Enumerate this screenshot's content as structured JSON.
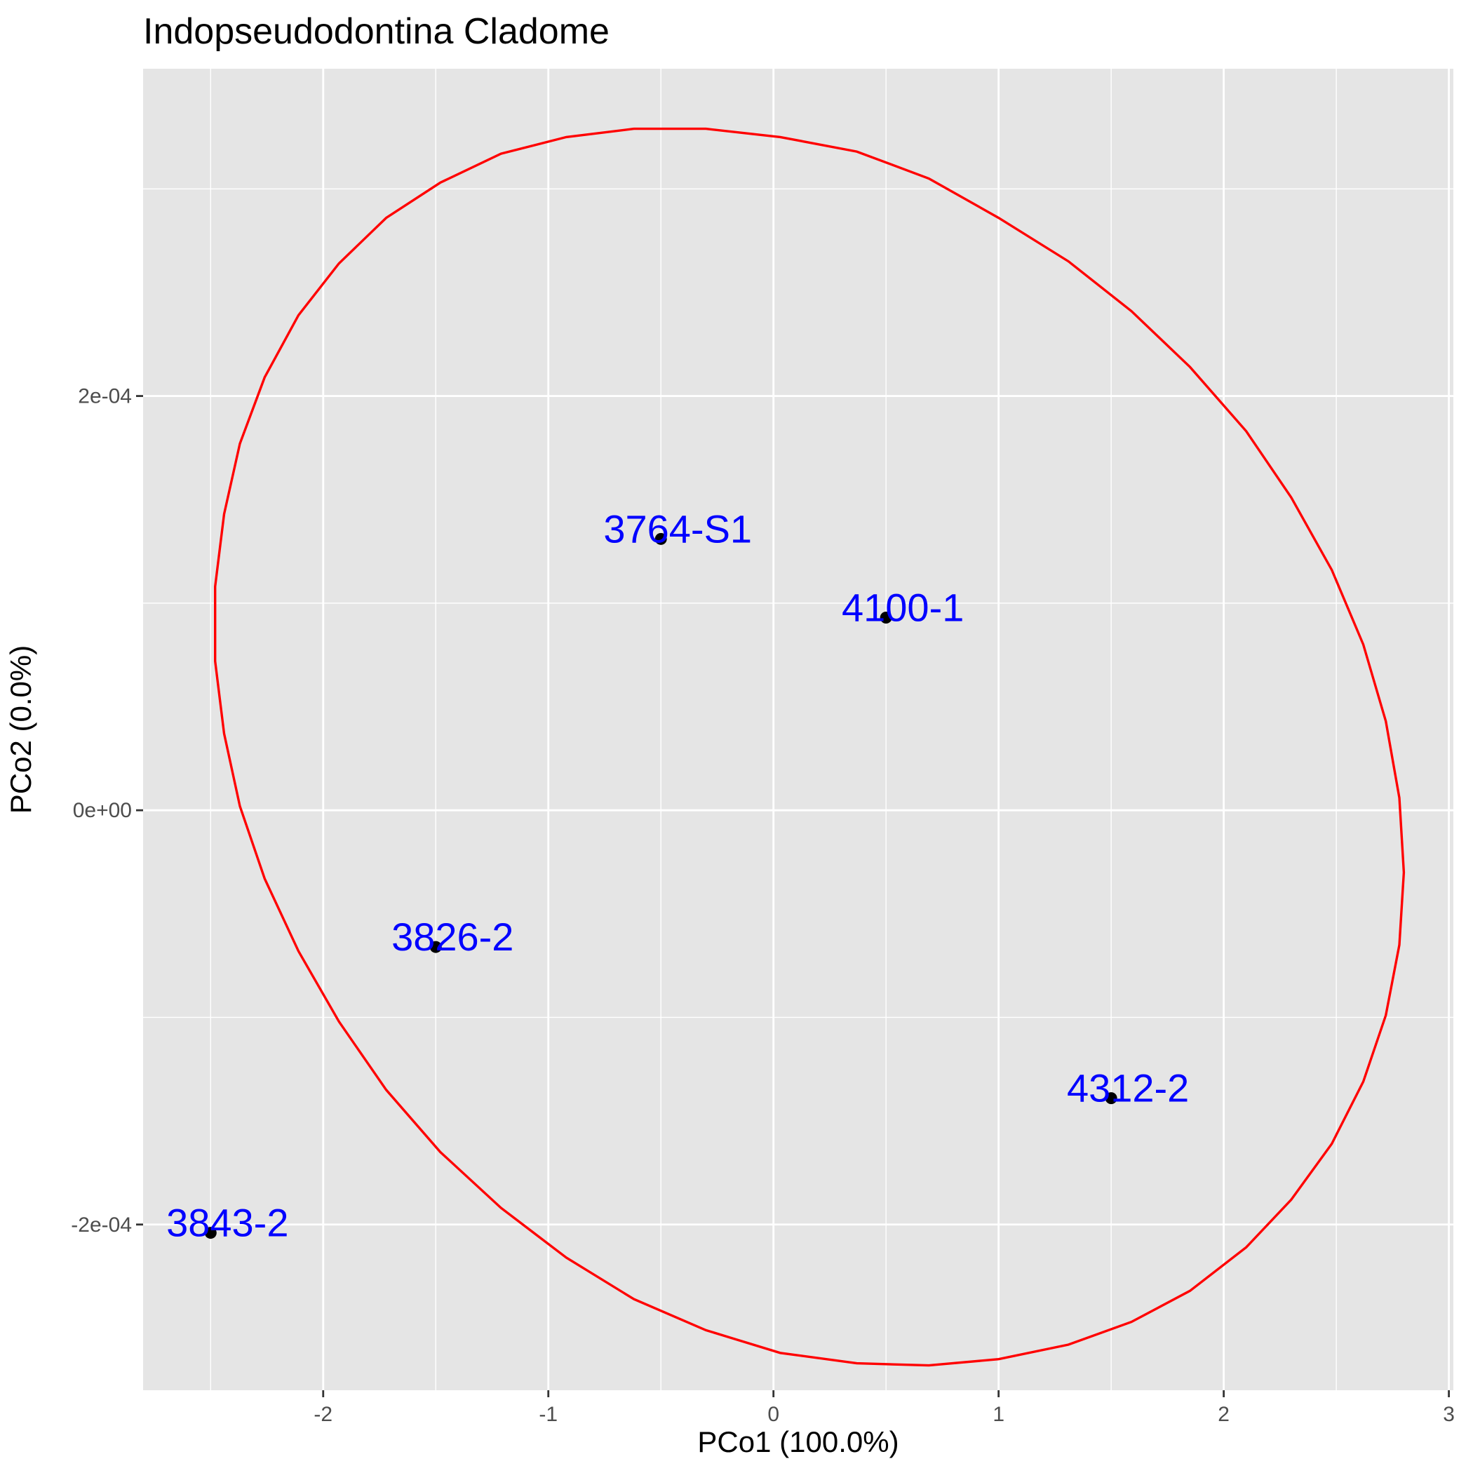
{
  "chart_data": {
    "type": "scatter",
    "title": "Indopseudodontina Cladome",
    "xlabel": "PCo1 (100.0%)",
    "ylabel": "PCo2 (0.0%)",
    "xlim": [
      -2.8,
      3.02
    ],
    "ylim": [
      -0.00028,
      0.000358
    ],
    "x_ticks": [
      -2,
      -1,
      0,
      1,
      2,
      3
    ],
    "x_tick_labels": [
      "-2",
      "-1",
      "0",
      "1",
      "2",
      "3"
    ],
    "y_ticks": [
      -0.0002,
      0,
      0.0002
    ],
    "y_tick_labels": [
      "-2e-04",
      "0e+00",
      "2e-04"
    ],
    "grid": true,
    "panel_background": "#e5e5e5",
    "grid_color": "#ffffff",
    "point_color": "#000000",
    "label_color": "#0000ff",
    "ellipse_color": "#ff0000",
    "points": [
      {
        "label": "3764-S1",
        "x": -0.5,
        "y": 0.000131
      },
      {
        "label": "4100-1",
        "x": 0.5,
        "y": 9.3e-05
      },
      {
        "label": "3826-2",
        "x": -1.5,
        "y": -6.6e-05
      },
      {
        "label": "4312-2",
        "x": 1.5,
        "y": -0.000139
      },
      {
        "label": "3843-2",
        "x": -2.5,
        "y": -0.000204
      }
    ],
    "ellipse": {
      "type": "confidence-ellipse",
      "path": [
        [
          -0.3,
          0.000329
        ],
        [
          0.03,
          0.000325
        ],
        [
          0.37,
          0.000318
        ],
        [
          0.69,
          0.000305
        ],
        [
          1.0,
          0.000286
        ],
        [
          1.31,
          0.000265
        ],
        [
          1.59,
          0.000241
        ],
        [
          1.85,
          0.000214
        ],
        [
          2.1,
          0.000183
        ],
        [
          2.3,
          0.000151
        ],
        [
          2.48,
          0.000116
        ],
        [
          2.62,
          8e-05
        ],
        [
          2.72,
          4.3e-05
        ],
        [
          2.78,
          6e-06
        ],
        [
          2.8,
          -3e-05
        ],
        [
          2.78,
          -6.5e-05
        ],
        [
          2.72,
          -9.9e-05
        ],
        [
          2.62,
          -0.000131
        ],
        [
          2.48,
          -0.000161
        ],
        [
          2.3,
          -0.000188
        ],
        [
          2.1,
          -0.000211
        ],
        [
          1.85,
          -0.000232
        ],
        [
          1.59,
          -0.000247
        ],
        [
          1.31,
          -0.000258
        ],
        [
          1.0,
          -0.000265
        ],
        [
          0.69,
          -0.000268
        ],
        [
          0.37,
          -0.000267
        ],
        [
          0.03,
          -0.000262
        ],
        [
          -0.3,
          -0.000251
        ],
        [
          -0.62,
          -0.000236
        ],
        [
          -0.92,
          -0.000216
        ],
        [
          -1.21,
          -0.000192
        ],
        [
          -1.48,
          -0.000165
        ],
        [
          -1.72,
          -0.000135
        ],
        [
          -1.93,
          -0.000102
        ],
        [
          -2.11,
          -6.8e-05
        ],
        [
          -2.26,
          -3.3e-05
        ],
        [
          -2.37,
          2e-06
        ],
        [
          -2.44,
          3.7e-05
        ],
        [
          -2.48,
          7.2e-05
        ],
        [
          -2.48,
          0.000108
        ],
        [
          -2.44,
          0.000143
        ],
        [
          -2.37,
          0.000177
        ],
        [
          -2.26,
          0.000209
        ],
        [
          -2.11,
          0.000239
        ],
        [
          -1.93,
          0.000264
        ],
        [
          -1.72,
          0.000286
        ],
        [
          -1.48,
          0.000303
        ],
        [
          -1.21,
          0.000317
        ],
        [
          -0.92,
          0.000325
        ],
        [
          -0.62,
          0.000329
        ]
      ]
    }
  }
}
